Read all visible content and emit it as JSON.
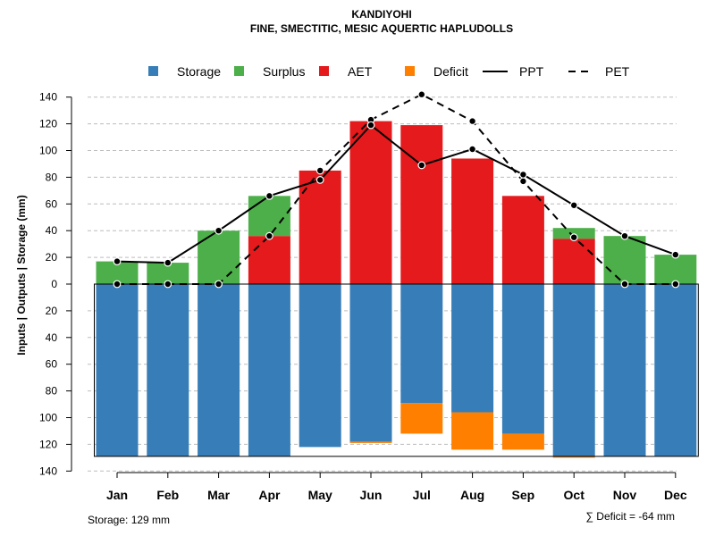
{
  "chart_data": {
    "type": "bar",
    "title": "KANDIYOHI",
    "subtitle": "FINE, SMECTITIC, MESIC AQUERTIC HAPLUDOLLS",
    "ylabel": "Inputs | Outputs | Storage    (mm)",
    "ylim": [
      -140,
      140
    ],
    "yticks": [
      140,
      120,
      100,
      80,
      60,
      40,
      20,
      0,
      20,
      40,
      60,
      80,
      100,
      120,
      140
    ],
    "grid": true,
    "categories": [
      "Jan",
      "Feb",
      "Mar",
      "Apr",
      "May",
      "Jun",
      "Jul",
      "Aug",
      "Sep",
      "Oct",
      "Nov",
      "Dec"
    ],
    "series": [
      {
        "name": "Storage",
        "color": "#377EB8",
        "values": [
          129,
          129,
          129,
          129,
          122,
          118,
          89,
          96,
          112,
          129,
          129,
          129
        ]
      },
      {
        "name": "Surplus",
        "color": "#4DAF4A",
        "values": [
          17,
          16,
          40,
          30,
          0,
          0,
          0,
          0,
          0,
          8,
          36,
          22
        ]
      },
      {
        "name": "AET",
        "color": "#E41A1C",
        "values": [
          0,
          0,
          0,
          36,
          85,
          122,
          119,
          94,
          66,
          34,
          0,
          0
        ]
      },
      {
        "name": "Deficit",
        "color": "#FF7F00",
        "values": [
          0,
          0,
          0,
          0,
          0,
          1,
          23,
          28,
          12,
          1,
          0,
          0
        ]
      },
      {
        "name": "PPT",
        "color": "#000000",
        "style": "solid",
        "values": [
          17,
          16,
          40,
          66,
          78,
          119,
          89,
          101,
          82,
          59,
          36,
          22
        ]
      },
      {
        "name": "PET",
        "color": "#000000",
        "style": "dashed",
        "values": [
          0,
          0,
          0,
          36,
          85,
          123,
          142,
          122,
          77,
          35,
          0,
          0
        ]
      }
    ],
    "legend": {
      "position": "top",
      "items": [
        "Storage",
        "Surplus",
        "AET",
        "Deficit",
        "PPT",
        "PET"
      ]
    },
    "storage_capacity": 129,
    "storage_note": "Storage: 129 mm",
    "deficit_note": "∑ Deficit = -64 mm"
  }
}
